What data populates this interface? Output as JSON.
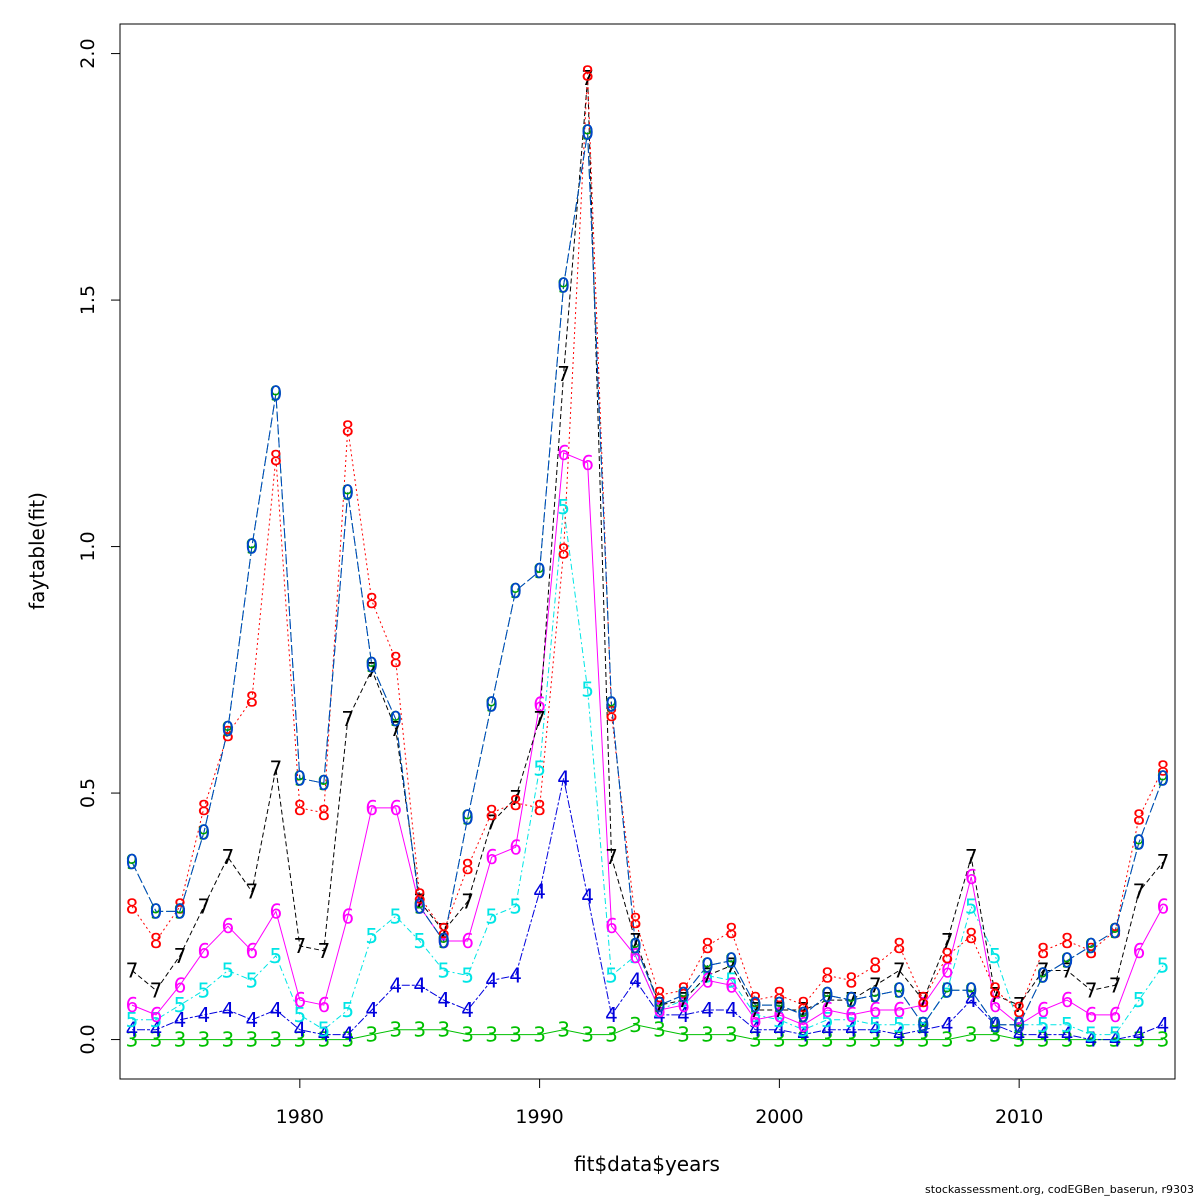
{
  "chart_data": {
    "type": "line",
    "xlabel": "fit$data$years",
    "ylabel": "faytable(fit)",
    "xlim": [
      1972.5,
      2016.5
    ],
    "ylim": [
      -0.08,
      2.06
    ],
    "xticks": [
      1980,
      1990,
      2000,
      2010
    ],
    "yticks": [
      0.0,
      0.5,
      1.0,
      1.5,
      2.0
    ],
    "ytick_labels": [
      "0.0",
      "0.5",
      "1.0",
      "1.5",
      "2.0"
    ],
    "grid": false,
    "x": [
      1973,
      1974,
      1975,
      1976,
      1977,
      1978,
      1979,
      1980,
      1981,
      1982,
      1983,
      1984,
      1985,
      1986,
      1987,
      1988,
      1989,
      1990,
      1991,
      1992,
      1993,
      1994,
      1995,
      1996,
      1997,
      1998,
      1999,
      2000,
      2001,
      2002,
      2003,
      2004,
      2005,
      2006,
      2007,
      2008,
      2009,
      2010,
      2011,
      2012,
      2013,
      2014,
      2015,
      2016
    ],
    "series": [
      {
        "name": "3",
        "color": "#00c000",
        "dash": "0",
        "values": [
          0.0,
          0.0,
          0.0,
          0.0,
          0.0,
          0.0,
          0.0,
          0.0,
          0.0,
          0.0,
          0.01,
          0.02,
          0.02,
          0.02,
          0.01,
          0.01,
          0.01,
          0.01,
          0.02,
          0.01,
          0.01,
          0.03,
          0.02,
          0.01,
          0.01,
          0.01,
          0.0,
          0.0,
          0.0,
          0.0,
          0.0,
          0.0,
          0.0,
          0.0,
          0.0,
          0.01,
          0.01,
          0.0,
          0.0,
          0.0,
          0.0,
          0.0,
          0.0,
          0.0
        ]
      },
      {
        "name": "4",
        "color": "#0000dd",
        "dash": "3,2,8,2",
        "values": [
          0.02,
          0.02,
          0.04,
          0.05,
          0.06,
          0.04,
          0.06,
          0.02,
          0.01,
          0.01,
          0.06,
          0.11,
          0.11,
          0.08,
          0.06,
          0.12,
          0.13,
          0.3,
          0.53,
          0.29,
          0.05,
          0.12,
          0.05,
          0.05,
          0.06,
          0.06,
          0.02,
          0.02,
          0.01,
          0.02,
          0.02,
          0.02,
          0.01,
          0.02,
          0.03,
          0.08,
          0.03,
          0.01,
          0.01,
          0.01,
          0.0,
          0.0,
          0.01,
          0.03
        ]
      },
      {
        "name": "5",
        "color": "#00e5e5",
        "dash": "6,3,2,3",
        "values": [
          0.04,
          0.04,
          0.07,
          0.1,
          0.14,
          0.12,
          0.17,
          0.05,
          0.02,
          0.06,
          0.21,
          0.25,
          0.2,
          0.14,
          0.13,
          0.25,
          0.27,
          0.55,
          1.08,
          0.71,
          0.13,
          0.17,
          0.06,
          0.08,
          0.13,
          0.12,
          0.05,
          0.04,
          0.02,
          0.04,
          0.04,
          0.03,
          0.03,
          0.03,
          0.1,
          0.27,
          0.17,
          0.03,
          0.03,
          0.03,
          0.01,
          0.01,
          0.08,
          0.15
        ]
      },
      {
        "name": "6",
        "color": "#ff00ff",
        "dash": "0",
        "values": [
          0.07,
          0.05,
          0.11,
          0.18,
          0.23,
          0.18,
          0.26,
          0.08,
          0.07,
          0.25,
          0.47,
          0.47,
          0.27,
          0.2,
          0.2,
          0.37,
          0.39,
          0.68,
          1.19,
          1.17,
          0.23,
          0.17,
          0.06,
          0.07,
          0.12,
          0.11,
          0.04,
          0.05,
          0.03,
          0.06,
          0.05,
          0.06,
          0.06,
          0.07,
          0.14,
          0.33,
          0.07,
          0.03,
          0.06,
          0.08,
          0.05,
          0.05,
          0.18,
          0.27
        ]
      },
      {
        "name": "7",
        "color": "#000000",
        "dash": "5,3",
        "values": [
          0.14,
          0.1,
          0.17,
          0.27,
          0.37,
          0.3,
          0.55,
          0.19,
          0.18,
          0.65,
          0.75,
          0.63,
          0.28,
          0.22,
          0.28,
          0.44,
          0.49,
          0.65,
          1.35,
          1.95,
          0.37,
          0.2,
          0.07,
          0.08,
          0.13,
          0.15,
          0.06,
          0.06,
          0.06,
          0.08,
          0.08,
          0.11,
          0.14,
          0.08,
          0.2,
          0.37,
          0.09,
          0.07,
          0.14,
          0.14,
          0.1,
          0.11,
          0.3,
          0.36
        ]
      },
      {
        "name": "8",
        "color": "#ff0000",
        "dash": "2,3",
        "values": [
          0.27,
          0.2,
          0.27,
          0.47,
          0.62,
          0.69,
          1.18,
          0.47,
          0.46,
          1.24,
          0.89,
          0.77,
          0.29,
          0.22,
          0.35,
          0.46,
          0.48,
          0.47,
          0.99,
          1.96,
          0.66,
          0.24,
          0.09,
          0.1,
          0.19,
          0.22,
          0.08,
          0.09,
          0.07,
          0.13,
          0.12,
          0.15,
          0.19,
          0.08,
          0.17,
          0.21,
          0.1,
          0.06,
          0.18,
          0.2,
          0.18,
          0.22,
          0.45,
          0.55
        ]
      },
      {
        "name": "9",
        "color": "#00a000",
        "dash": "10,3",
        "values": [
          0.36,
          0.26,
          0.26,
          0.42,
          0.63,
          1.0,
          1.31,
          0.53,
          0.52,
          1.11,
          0.76,
          0.65,
          0.27,
          0.2,
          0.45,
          0.68,
          0.91,
          0.95,
          1.53,
          1.84,
          0.68,
          0.19,
          0.07,
          0.09,
          0.15,
          0.16,
          0.07,
          0.07,
          0.05,
          0.09,
          0.08,
          0.09,
          0.1,
          0.03,
          0.1,
          0.1,
          0.03,
          0.03,
          0.13,
          0.16,
          0.19,
          0.22,
          0.4,
          0.53
        ]
      },
      {
        "name": "0",
        "color": "#0044cc",
        "dash": "10,3",
        "values": [
          0.36,
          0.26,
          0.26,
          0.42,
          0.63,
          1.0,
          1.31,
          0.53,
          0.52,
          1.11,
          0.76,
          0.65,
          0.27,
          0.2,
          0.45,
          0.68,
          0.91,
          0.95,
          1.53,
          1.84,
          0.68,
          0.19,
          0.07,
          0.09,
          0.15,
          0.16,
          0.07,
          0.07,
          0.05,
          0.09,
          0.08,
          0.09,
          0.1,
          0.03,
          0.1,
          0.1,
          0.03,
          0.03,
          0.13,
          0.16,
          0.19,
          0.22,
          0.4,
          0.53
        ]
      }
    ]
  },
  "footer": {
    "credit": "stockassessment.org, codEGBen_baserun, r9303"
  }
}
